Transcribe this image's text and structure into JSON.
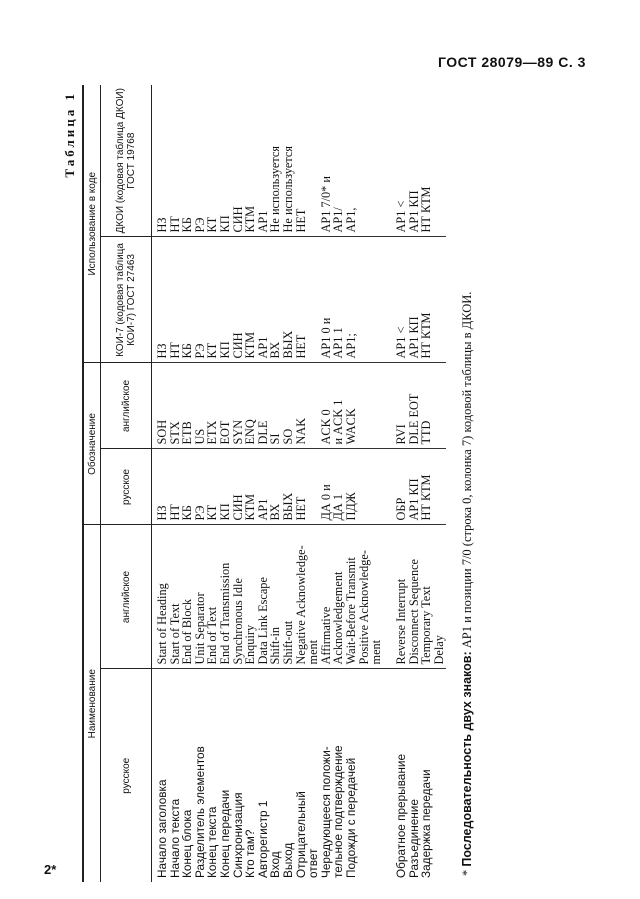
{
  "header": {
    "title": "ГОСТ 28079—89 С. 3",
    "page_mark": "2*"
  },
  "table": {
    "caption": "Таблица 1",
    "groups": [
      "Наименование",
      "Обозначение",
      "Использование в коде"
    ],
    "columns": [
      "русское",
      "английское",
      "русское",
      "английское",
      "КОИ-7 (кодовая таблица КОИ-7) ГОСТ 27463",
      "ДКОИ (кодовая таблица ДКОИ) ГОСТ 19768"
    ],
    "rows": [
      [
        "Начало заголовка",
        "Start of Heading",
        "НЗ",
        "SOH",
        "НЗ",
        "НЗ"
      ],
      [
        "Начало текста",
        "Start of Text",
        "НТ",
        "STX",
        "НТ",
        "НТ"
      ],
      [
        "Конец блока",
        "End of Block",
        "КБ",
        "ETB",
        "КБ",
        "КБ"
      ],
      [
        "Разделитель элементов",
        "Unit Separator",
        "РЭ",
        "US",
        "РЭ",
        "РЭ"
      ],
      [
        "Конец текста",
        "End of Text",
        "КТ",
        "ETX",
        "КТ",
        "КТ"
      ],
      [
        "Конец передачи",
        "End of Transmission",
        "КП",
        "EOT",
        "КП",
        "КП"
      ],
      [
        "Синхронизация",
        "Synchronous Idle",
        "СИН",
        "SYN",
        "СИН",
        "СИН"
      ],
      [
        "Кто там?",
        "Enquiry",
        "КТМ",
        "ENQ",
        "КТМ",
        "КТМ"
      ],
      [
        "Авторегистр 1",
        "Data Link Escape",
        "АР1",
        "DLE",
        "АР1",
        "АР1"
      ],
      [
        "Вход",
        "Shift-in",
        "ВХ",
        "SI",
        "ВХ",
        "Не используется"
      ],
      [
        "Выход",
        "Shift-out",
        "ВЫХ",
        "SO",
        "ВЫХ",
        "Не используется"
      ],
      [
        "Отрицательный\nответ",
        "Negative Acknowledge-\nment",
        "НЕТ",
        "NAK",
        "НЕТ",
        "НЕТ"
      ],
      [
        "Чередующееся положи-\nтельное подтверждение",
        "Affirmative\nAcknowledgement",
        "ДА 0 и\nДА 1",
        "ACK 0\nи ACK 1",
        "АР1 0 и\nАР1 1",
        "АР1 7/0* и\nАР1/"
      ],
      [
        "Подожди с передачей",
        "Wait-Before Transmit\nPositive Acknowledge-\nment",
        "ПДЖ",
        "WACK",
        "АР1;",
        "АР1,"
      ],
      [
        "Обратное прерывание",
        "Reverse Interrupt",
        "ОБР",
        "RVI",
        "АР1 <",
        "АР1 <"
      ],
      [
        "Разъединение",
        "Disconnect Sequence",
        "АР1 КП",
        "DLE EOT",
        "АР1 КП",
        "АР1 КП"
      ],
      [
        "Задержка передачи",
        "Temporary Text\nDelay",
        "НТ КТМ",
        "TTD",
        "НТ КТМ",
        "НТ КТМ"
      ]
    ]
  },
  "footnote": {
    "mark": "*",
    "bold": "Последовательность двух знаков:",
    "text": " АР1 и позиции 7/0 (строка 0, колонка 7) кодовой таблицы в ДКОИ."
  }
}
